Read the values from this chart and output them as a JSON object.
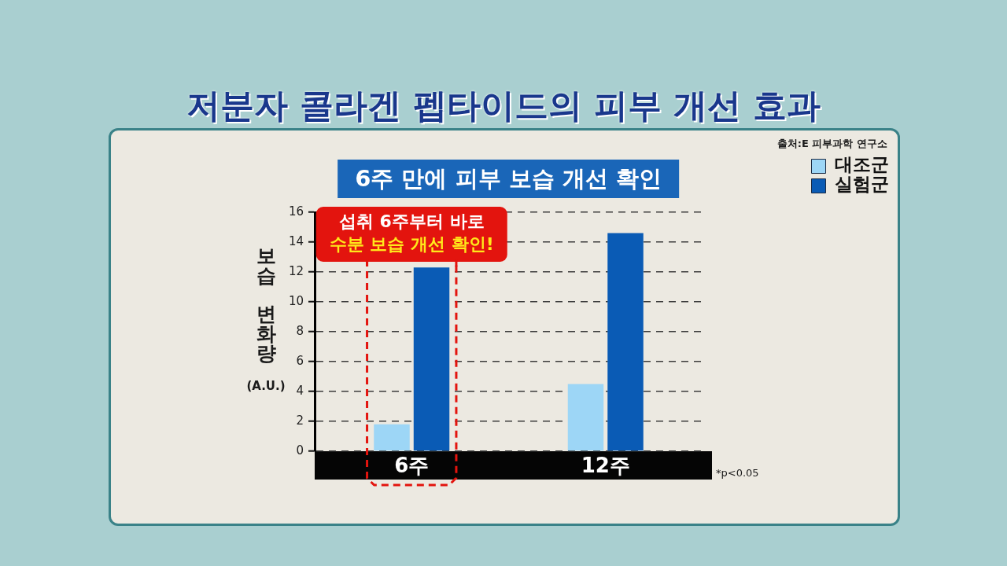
{
  "chart_data": {
    "type": "bar",
    "title": "저분자 콜라겐 펩타이드의 피부 개선 효과",
    "subtitle": "6주 만에 피부 보습 개선 확인",
    "ylabel": "보습 변화량 (A.U.)",
    "categories": [
      "6주",
      "12주"
    ],
    "series": [
      {
        "name": "대조군",
        "color": "#9dd6f6",
        "values": [
          1.8,
          4.5
        ]
      },
      {
        "name": "실험군",
        "color": "#0a5bb5",
        "values": [
          12.3,
          14.6
        ]
      }
    ],
    "ylim": [
      0,
      16
    ],
    "yticks": [
      0,
      2,
      4,
      6,
      8,
      10,
      12,
      14,
      16
    ],
    "grid": "y",
    "legend": "top right",
    "bands": [
      {
        "axis": "x",
        "from": "6주",
        "to": "6주",
        "label": "섭취 6주부터 바로\n수분 보습 개선 확인!",
        "color": "#e3140e"
      }
    ],
    "annotations": [
      "출처:E 피부과학 연구소",
      "*p<0.05"
    ]
  }
}
